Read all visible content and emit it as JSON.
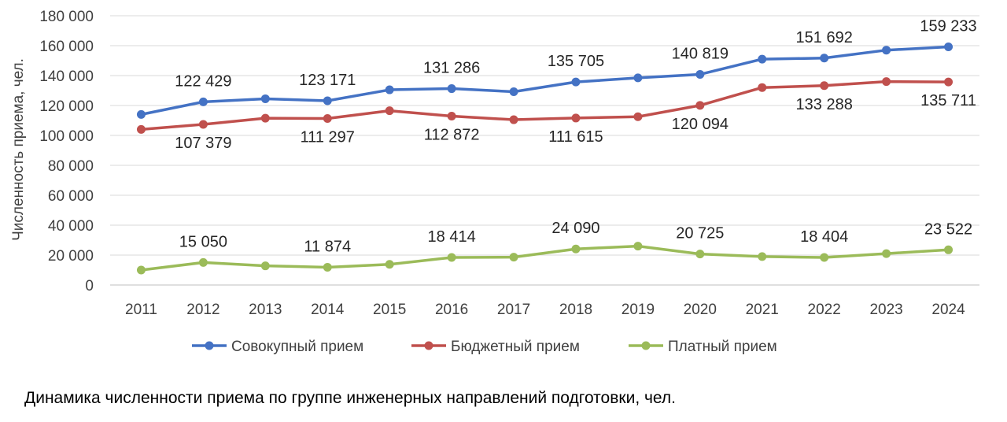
{
  "caption": "Динамика численности приема по группе инженерных направлений подготовки, чел.",
  "chart_data": {
    "type": "line",
    "title": "",
    "xlabel": "",
    "ylabel": "Численность приема, чел.",
    "ylim": [
      0,
      180000
    ],
    "ytick_step": 20000,
    "ytick_labels": [
      "0",
      "20 000",
      "40 000",
      "60 000",
      "80 000",
      "100 000",
      "120 000",
      "140 000",
      "160 000",
      "180 000"
    ],
    "grid": true,
    "legend": "bottom",
    "categories": [
      "2011",
      "2012",
      "2013",
      "2014",
      "2015",
      "2016",
      "2017",
      "2018",
      "2019",
      "2020",
      "2021",
      "2022",
      "2023",
      "2024"
    ],
    "series": [
      {
        "name": "Совокупный прием",
        "color": "#4472C4",
        "values": [
          114000,
          122429,
          124500,
          123171,
          130500,
          131286,
          129200,
          135705,
          138500,
          140819,
          151000,
          151692,
          157000,
          159233
        ],
        "labels": [
          null,
          "122 429",
          null,
          "123 171",
          null,
          "131 286",
          null,
          "135 705",
          null,
          "140 819",
          null,
          "151 692",
          null,
          "159 233"
        ]
      },
      {
        "name": "Бюджетный прием",
        "color": "#C0504D",
        "values": [
          104000,
          107379,
          111500,
          111297,
          116500,
          112872,
          110500,
          111615,
          112500,
          120094,
          132000,
          133288,
          136000,
          135711
        ],
        "labels": [
          null,
          "107 379",
          null,
          "111 297",
          null,
          "112 872",
          null,
          "111 615",
          null,
          "120 094",
          null,
          "133 288",
          null,
          "135 711"
        ]
      },
      {
        "name": "Платный прием",
        "color": "#9BBB59",
        "values": [
          10000,
          15050,
          12800,
          11874,
          13800,
          18414,
          18600,
          24090,
          26000,
          20725,
          19000,
          18404,
          21000,
          23522
        ],
        "labels": [
          null,
          "15 050",
          null,
          "11 874",
          null,
          "18 414",
          null,
          "24 090",
          null,
          "20 725",
          null,
          "18 404",
          null,
          "23 522"
        ]
      }
    ]
  }
}
